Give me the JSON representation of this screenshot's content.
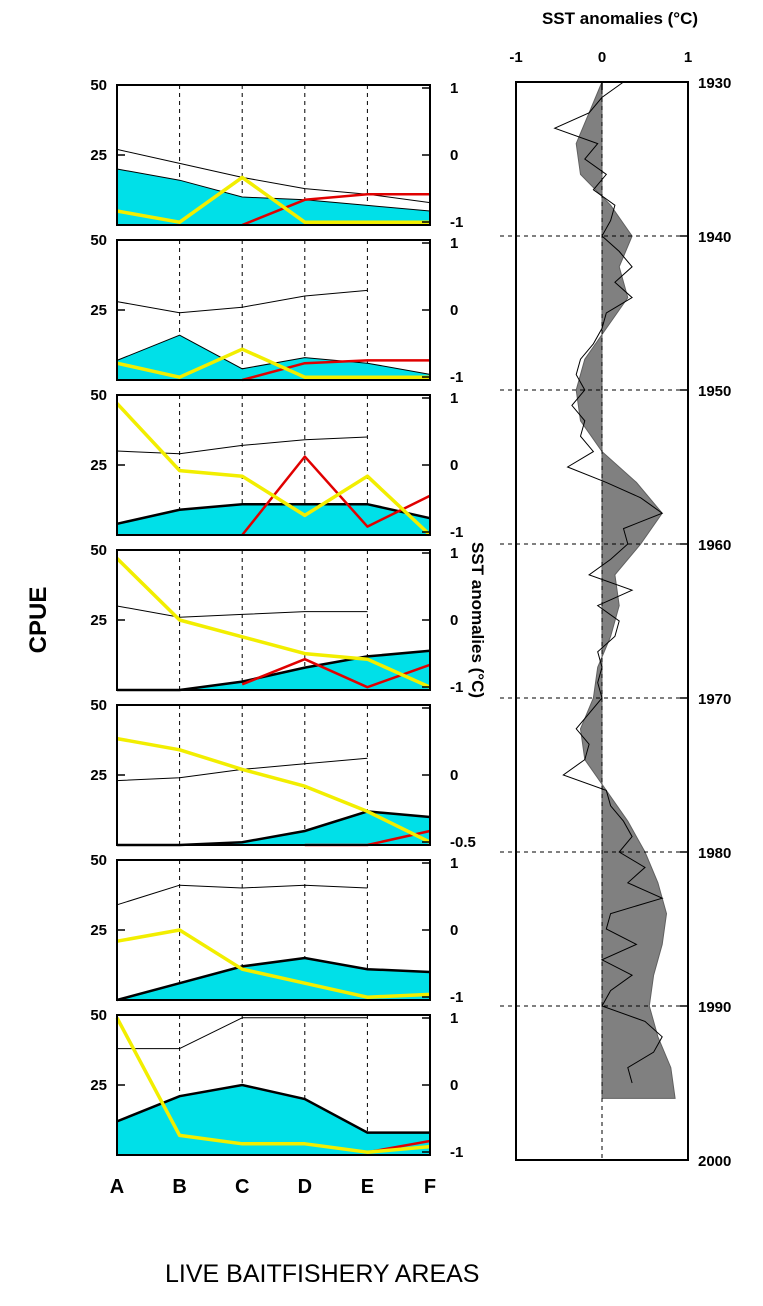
{
  "caption": "LIVE BAITFISHERY AREAS",
  "chart_data": [
    {
      "type": "area",
      "name": "cpue-panels",
      "ylabel": "CPUE",
      "y2label": "SST anomalies (°C)",
      "categories": [
        "A",
        "B",
        "C",
        "D",
        "E",
        "F"
      ],
      "ylim": [
        0,
        50
      ],
      "yticks": [
        "50",
        "25"
      ],
      "panels": [
        {
          "area": [
            20,
            16,
            10,
            9,
            7,
            5
          ],
          "thin": [
            27,
            22,
            17,
            13,
            11,
            8
          ],
          "yellow": [
            5,
            1,
            17,
            1,
            1,
            1
          ],
          "red": [
            null,
            null,
            0,
            9,
            11,
            11
          ],
          "y2ticks": [
            "1",
            "0",
            "-1"
          ]
        },
        {
          "area": [
            7,
            16,
            4,
            8,
            6,
            2
          ],
          "thin": [
            28,
            24,
            26,
            30,
            32,
            null
          ],
          "yellow": [
            6,
            1,
            11,
            1,
            1,
            1
          ],
          "red": [
            null,
            null,
            0,
            6,
            7,
            7
          ],
          "y2ticks": [
            "1",
            "0",
            "-1"
          ]
        },
        {
          "area": [
            4,
            9,
            11,
            11,
            11,
            6
          ],
          "thin": [
            30,
            29,
            32,
            34,
            35,
            null
          ],
          "yellow": [
            47,
            23,
            21,
            7,
            21,
            0
          ],
          "red": [
            null,
            null,
            0,
            28,
            3,
            14
          ],
          "y2ticks": [
            "1",
            "0",
            "-1"
          ]
        },
        {
          "area": [
            0,
            0,
            3,
            8,
            12,
            14
          ],
          "thin": [
            30,
            26,
            27,
            28,
            28,
            null
          ],
          "yellow": [
            47,
            25,
            19,
            13,
            11,
            1
          ],
          "red": [
            null,
            null,
            2,
            11,
            1,
            9
          ],
          "y2ticks": [
            "1",
            "0",
            "-1"
          ]
        },
        {
          "area": [
            0,
            0,
            1,
            5,
            12,
            10
          ],
          "thin": [
            23,
            24,
            27,
            29,
            31,
            null
          ],
          "yellow": [
            38,
            34,
            27,
            21,
            12,
            1
          ],
          "red": [
            null,
            null,
            null,
            0,
            0,
            5
          ],
          "y2ticks": [
            "",
            "0",
            "-0.5"
          ]
        },
        {
          "area": [
            0,
            6,
            12,
            15,
            11,
            10
          ],
          "thin": [
            34,
            41,
            40,
            41,
            40,
            null
          ],
          "yellow": [
            21,
            25,
            11,
            6,
            1,
            2
          ],
          "red": [
            null,
            null,
            null,
            null,
            1,
            2
          ],
          "y2ticks": [
            "1",
            "0",
            "-1"
          ]
        },
        {
          "area": [
            12,
            21,
            25,
            20,
            8,
            8
          ],
          "thin": [
            38,
            38,
            49,
            49,
            49,
            null
          ],
          "yellow": [
            49,
            7,
            4,
            4,
            1,
            3
          ],
          "red": [
            null,
            null,
            null,
            null,
            1,
            5
          ],
          "y2ticks": [
            "1",
            "0",
            "-1"
          ]
        }
      ]
    },
    {
      "type": "area",
      "name": "sst-timeseries",
      "title": "SST anomalies (°C)",
      "xlim": [
        -1,
        1
      ],
      "xticks": [
        "-1",
        "0",
        "1"
      ],
      "ylim": [
        1930,
        2000
      ],
      "yticks": [
        "1930",
        "1940",
        "1950",
        "1960",
        "1970",
        "1980",
        "1990",
        "2000"
      ],
      "smooth": {
        "years": [
          1930,
          1932,
          1934,
          1936,
          1938,
          1940,
          1942,
          1944,
          1946,
          1948,
          1950,
          1952,
          1954,
          1956,
          1958,
          1960,
          1962,
          1964,
          1966,
          1968,
          1970,
          1972,
          1974,
          1976,
          1978,
          1980,
          1982,
          1984,
          1986,
          1988,
          1990,
          1992,
          1994,
          1996
        ],
        "values": [
          0.0,
          -0.15,
          -0.3,
          -0.25,
          0.1,
          0.35,
          0.2,
          0.3,
          0.05,
          -0.2,
          -0.3,
          -0.25,
          0.0,
          0.4,
          0.7,
          0.45,
          0.15,
          0.2,
          0.1,
          -0.05,
          -0.1,
          -0.25,
          -0.2,
          0.05,
          0.3,
          0.5,
          0.65,
          0.75,
          0.7,
          0.6,
          0.55,
          0.65,
          0.8,
          0.85
        ]
      },
      "raw": {
        "years": [
          1930,
          1931,
          1932,
          1933,
          1934,
          1935,
          1936,
          1937,
          1938,
          1939,
          1940,
          1941,
          1942,
          1943,
          1944,
          1945,
          1946,
          1947,
          1948,
          1949,
          1950,
          1951,
          1952,
          1953,
          1954,
          1955,
          1956,
          1957,
          1958,
          1959,
          1960,
          1961,
          1962,
          1963,
          1964,
          1965,
          1966,
          1967,
          1968,
          1969,
          1970,
          1971,
          1972,
          1973,
          1974,
          1975,
          1976,
          1977,
          1978,
          1979,
          1980,
          1981,
          1982,
          1983,
          1984,
          1985,
          1986,
          1987,
          1988,
          1989,
          1990,
          1991,
          1992,
          1993,
          1994,
          1995
        ],
        "values": [
          0.25,
          0.0,
          -0.15,
          -0.55,
          -0.05,
          -0.2,
          0.05,
          -0.1,
          0.15,
          0.1,
          0.0,
          0.2,
          0.35,
          0.15,
          0.35,
          0.05,
          0.0,
          -0.1,
          -0.25,
          -0.3,
          -0.2,
          -0.35,
          -0.2,
          -0.25,
          -0.1,
          -0.4,
          0.05,
          0.45,
          0.7,
          0.25,
          0.3,
          0.1,
          -0.15,
          0.35,
          -0.05,
          0.2,
          0.15,
          -0.05,
          0.0,
          -0.05,
          0.0,
          -0.15,
          -0.3,
          -0.15,
          -0.2,
          -0.45,
          0.05,
          0.1,
          0.25,
          0.35,
          0.2,
          0.5,
          0.3,
          0.7,
          0.1,
          0.05,
          0.4,
          0.0,
          0.35,
          0.1,
          0.0,
          0.5,
          0.7,
          0.6,
          0.3,
          0.35
        ]
      }
    }
  ]
}
